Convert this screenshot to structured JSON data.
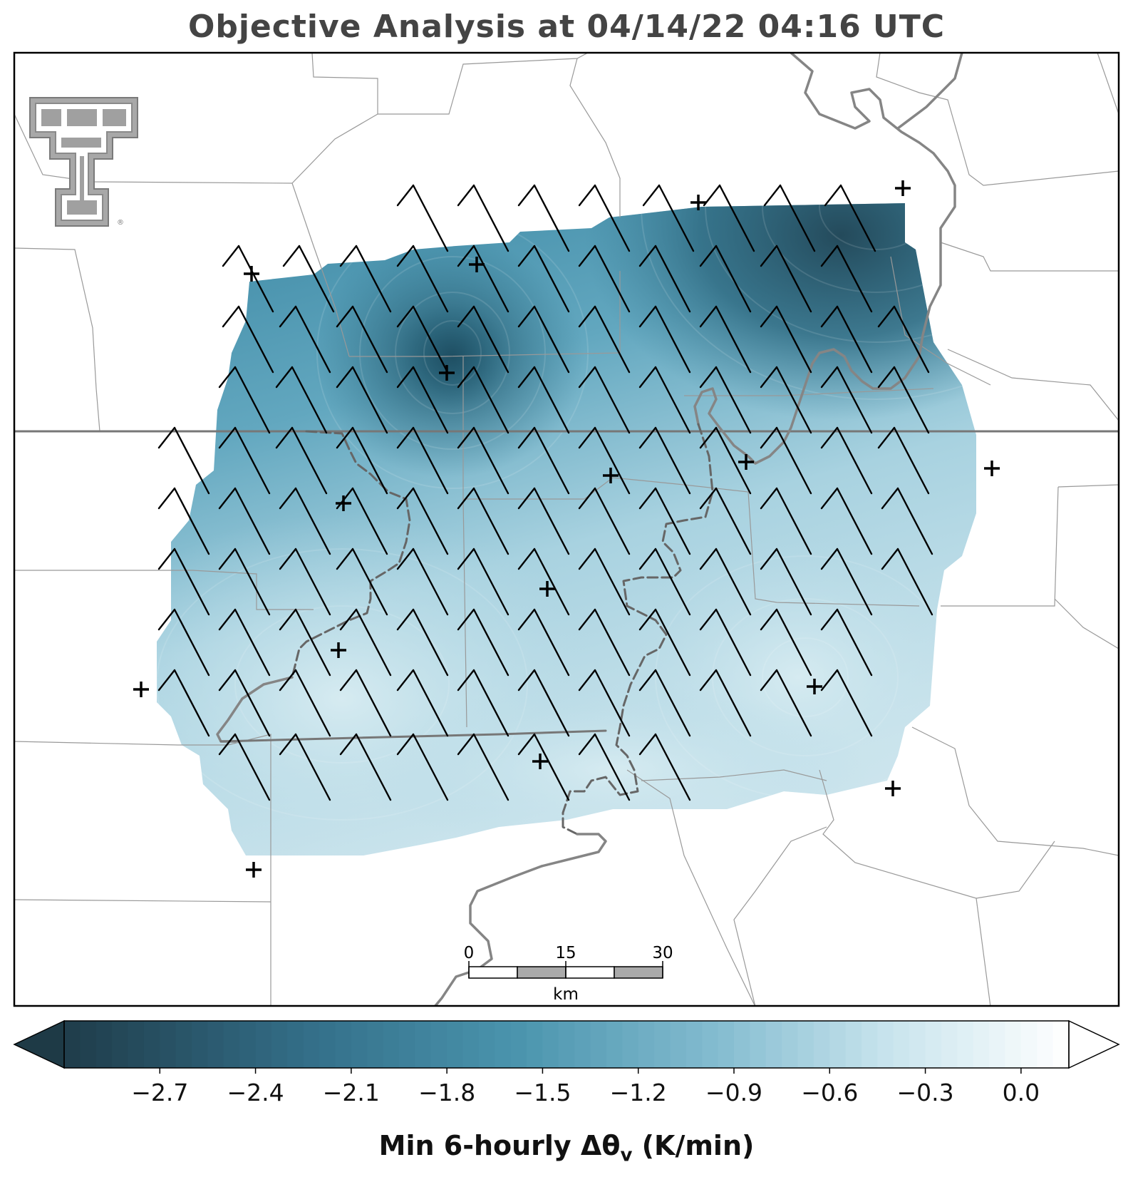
{
  "title": "Objective Analysis at 04/14/22 04:16 UTC",
  "colorbar": {
    "label": "Min 6-hourly Δθv (K/min)",
    "label_main": "Min 6-hourly Δθ",
    "label_sub": "v",
    "label_tail": " (K/min)",
    "min": -3.0,
    "max": 0.15,
    "ticks": [
      "−2.7",
      "−2.4",
      "−2.1",
      "−1.8",
      "−1.5",
      "−1.2",
      "−0.9",
      "−0.6",
      "−0.3",
      "0.0"
    ],
    "tick_values": [
      -2.7,
      -2.4,
      -2.1,
      -1.8,
      -1.5,
      -1.2,
      -0.9,
      -0.6,
      -0.3,
      0.0
    ],
    "colors": {
      "dark": "#1f3c4a",
      "mid": "#4a94ad",
      "light": "#cfe6ee",
      "white": "#ffffff"
    }
  },
  "scale_bar": {
    "labels": [
      "0",
      "15",
      "30"
    ],
    "unit": "km"
  },
  "logo": {
    "name": "texas-tech-double-t-logo",
    "text": "®"
  },
  "colors": {
    "boundary": "#888888",
    "river": "#808080",
    "state_line": "#777777",
    "barb": "#000000"
  }
}
